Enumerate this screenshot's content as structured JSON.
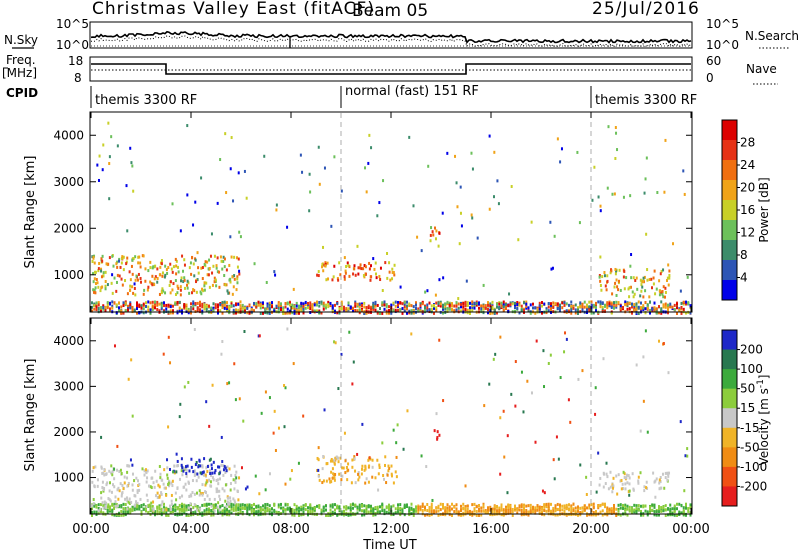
{
  "header": {
    "station": "Christmas Valley East (fitACF)",
    "beam": "Beam 05",
    "date": "25/Jul/2016"
  },
  "nsky": {
    "left_label": "N.Sky",
    "ticks": [
      "10^5",
      "10^0"
    ],
    "right_label": "N.Search",
    "right_ticks": [
      "10^5",
      "10^0"
    ]
  },
  "freq": {
    "left_label": "Freq.",
    "unit": "[MHz]",
    "ticks": [
      "18",
      "8"
    ],
    "right_label": "Nave",
    "right_ticks": [
      "60",
      "0"
    ]
  },
  "cpid": {
    "label": "CPID",
    "segments": [
      {
        "text": "themis 3300 RF",
        "start": 0,
        "end": 10
      },
      {
        "text": "normal (fast) 151 RF",
        "start": 10,
        "end": 20
      },
      {
        "text": "themis 3300 RF",
        "start": 20,
        "end": 24
      }
    ]
  },
  "time_axis": {
    "ticks": [
      "00:00",
      "04:00",
      "08:00",
      "12:00",
      "16:00",
      "20:00",
      "00:00"
    ],
    "label": "Time UT"
  },
  "chart_data": [
    {
      "type": "heatmap",
      "ylabel": "Slant Range [km]",
      "yticks": [
        "1000",
        "2000",
        "3000",
        "4000"
      ],
      "ylim": [
        200,
        4500
      ],
      "xlim": [
        0,
        24
      ],
      "colorbar": {
        "label": "Power [dB]",
        "ticks": [
          "4",
          "8",
          "12",
          "16",
          "20",
          "24",
          "28"
        ],
        "colors": [
          "#0000e8",
          "#2d55b5",
          "#3c8c6b",
          "#6cc05a",
          "#c8d028",
          "#f0a318",
          "#f06f10",
          "#e63216",
          "#dc0000"
        ]
      },
      "echo_regions": [
        {
          "t0": 0.0,
          "t1": 5.9,
          "r0": 600,
          "r1": 1450,
          "level": 0.58
        },
        {
          "t0": 9.0,
          "t1": 12.2,
          "r0": 900,
          "r1": 1300,
          "level": 0.75
        },
        {
          "t0": 13.5,
          "t1": 13.9,
          "r0": 1600,
          "r1": 2100,
          "level": 0.7
        },
        {
          "t0": 20.3,
          "t1": 23.1,
          "r0": 550,
          "r1": 1150,
          "level": 0.6
        }
      ]
    },
    {
      "type": "heatmap",
      "ylabel": "Slant Range [km]",
      "yticks": [
        "1000",
        "2000",
        "3000",
        "4000"
      ],
      "ylim": [
        200,
        4500
      ],
      "xlim": [
        0,
        24
      ],
      "colorbar": {
        "label": "Velocity [m s^-1]",
        "unit_sup": "-1",
        "ticks": [
          "200",
          "100",
          "50",
          "15",
          "-15",
          "-50",
          "-100",
          "-200"
        ],
        "colors": [
          "#1e28c8",
          "#287850",
          "#3caa3c",
          "#8ccd3c",
          "#c8c8c8",
          "#f0b428",
          "#f08c14",
          "#f05014",
          "#e61e1e"
        ]
      },
      "echo_regions": [
        {
          "t0": 0.0,
          "t1": 5.9,
          "r0": 300,
          "r1": 1300,
          "velocity": -15
        },
        {
          "t0": 3.0,
          "t1": 5.5,
          "r0": 1100,
          "r1": 1450,
          "velocity": 200
        },
        {
          "t0": 9.0,
          "t1": 12.2,
          "r0": 900,
          "r1": 1500,
          "velocity": -60
        },
        {
          "t0": 13.6,
          "t1": 13.9,
          "r0": 1800,
          "r1": 2100,
          "velocity": -200
        },
        {
          "t0": 20.3,
          "t1": 23.1,
          "r0": 700,
          "r1": 1150,
          "velocity": -15
        }
      ]
    }
  ]
}
